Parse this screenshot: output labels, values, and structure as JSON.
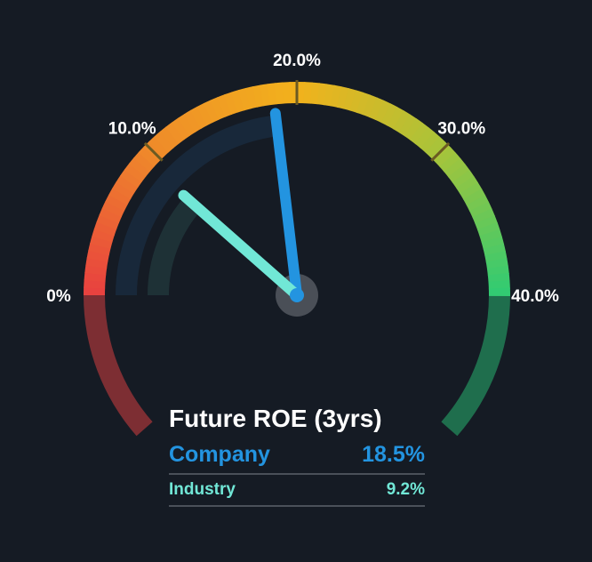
{
  "chart_data": {
    "type": "gauge",
    "title": "Future ROE (3yrs)",
    "range": [
      0,
      40
    ],
    "ticks": [
      {
        "value": 0,
        "label": "0%"
      },
      {
        "value": 10,
        "label": "10.0%"
      },
      {
        "value": 20,
        "label": "20.0%"
      },
      {
        "value": 30,
        "label": "30.0%"
      },
      {
        "value": 40,
        "label": "40.0%"
      }
    ],
    "series": [
      {
        "name": "Company",
        "value": 18.5,
        "display": "18.5%",
        "color": "#2394e0"
      },
      {
        "name": "Industry",
        "value": 9.2,
        "display": "9.2%",
        "color": "#71e7d6"
      }
    ],
    "gradient_colors": [
      "#e8403f",
      "#ef8a2a",
      "#f2b21c",
      "#a7c43a",
      "#2fcb73"
    ],
    "lower_colors": {
      "left": "#7d2e33",
      "right": "#1f6e4d"
    },
    "background": "#151b24"
  }
}
